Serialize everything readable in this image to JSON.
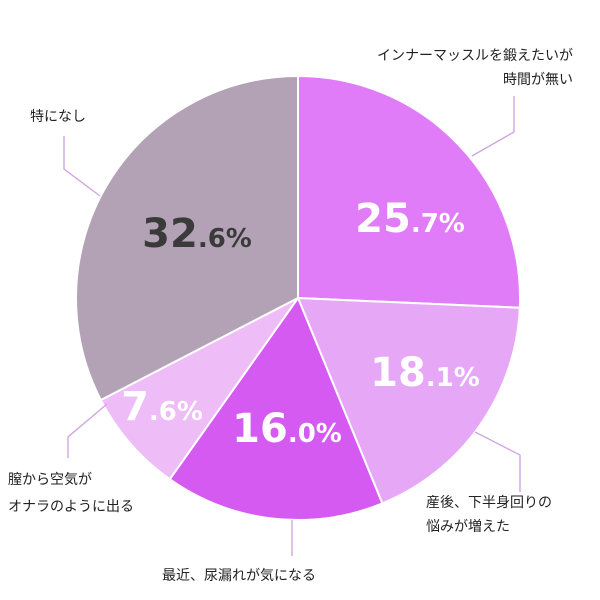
{
  "chart_data": {
    "type": "pie",
    "title": "",
    "start": "top",
    "direction": "clockwise",
    "slices": [
      {
        "label_lines": [
          "インナーマッスルを鍛えたいが",
          "時間が無い"
        ],
        "value": 25.7,
        "int_text": "25",
        "dec_text": ".7%",
        "color": "#e07cf8",
        "text_color": "#ffffff"
      },
      {
        "label_lines": [
          "産後、下半身回りの",
          "悩みが増えた"
        ],
        "value": 18.1,
        "int_text": "18",
        "dec_text": ".1%",
        "color": "#e6a8f6",
        "text_color": "#ffffff"
      },
      {
        "label_lines": [
          "最近、尿漏れが気になる"
        ],
        "value": 16.0,
        "int_text": "16",
        "dec_text": ".0%",
        "color": "#d45af1",
        "text_color": "#ffffff"
      },
      {
        "label_lines": [
          "膣から空気が",
          "オナラのように出る"
        ],
        "value": 7.6,
        "int_text": "7",
        "dec_text": ".6%",
        "color": "#eebcf7",
        "text_color": "#ffffff"
      },
      {
        "label_lines": [
          "特になし"
        ],
        "value": 32.6,
        "int_text": "32",
        "dec_text": ".6%",
        "color": "#b3a1b5",
        "text_color": "#3a3a3a"
      }
    ]
  }
}
